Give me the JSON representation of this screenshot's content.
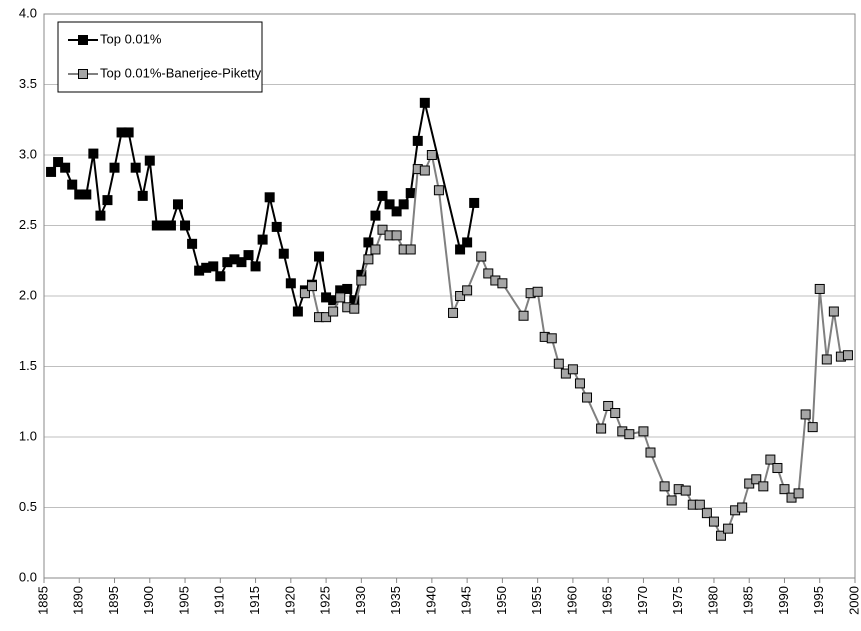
{
  "chart_data": {
    "type": "line",
    "xlim": [
      1885,
      2000
    ],
    "xticks": [
      1885,
      1890,
      1895,
      1900,
      1905,
      1910,
      1915,
      1920,
      1925,
      1930,
      1935,
      1940,
      1945,
      1950,
      1955,
      1960,
      1965,
      1970,
      1975,
      1980,
      1985,
      1990,
      1995,
      2000
    ],
    "ylim": [
      0,
      4
    ],
    "yticks": [
      {
        "value": 0,
        "label": "0.0"
      },
      0.5,
      {
        "value": 1,
        "label": "1.0"
      },
      1.5,
      {
        "value": 2,
        "label": "2.0"
      },
      2.5,
      {
        "value": 3,
        "label": "3.0"
      },
      3.5,
      {
        "value": 4,
        "label": "4.0"
      }
    ],
    "grid": true,
    "legend": "upper left",
    "series": [
      {
        "name": "Top 0.01%",
        "color": "#000000",
        "marker_fill": "#000000",
        "x": [
          1886,
          1887,
          1888,
          1889,
          1890,
          1891,
          1892,
          1893,
          1894,
          1895,
          1896,
          1897,
          1898,
          1899,
          1900,
          1901,
          1902,
          1903,
          1904,
          1905,
          1906,
          1907,
          1908,
          1909,
          1910,
          1911,
          1912,
          1913,
          1914,
          1915,
          1916,
          1917,
          1918,
          1919,
          1920,
          1921,
          1922,
          1923,
          1924,
          1925,
          1926,
          1927,
          1928,
          1929,
          1930,
          1931,
          1932,
          1933,
          1934,
          1935,
          1936,
          1937,
          1938,
          1939,
          1944,
          1945,
          1946
        ],
        "values": [
          2.88,
          2.95,
          2.91,
          2.79,
          2.72,
          2.72,
          3.01,
          2.57,
          2.68,
          2.91,
          3.16,
          3.16,
          2.91,
          2.71,
          2.96,
          2.5,
          2.5,
          2.5,
          2.65,
          2.5,
          2.37,
          2.18,
          2.2,
          2.21,
          2.14,
          2.24,
          2.26,
          2.24,
          2.29,
          2.21,
          2.4,
          2.7,
          2.49,
          2.3,
          2.09,
          1.89,
          2.04,
          2.08,
          2.28,
          1.99,
          1.97,
          2.04,
          2.05,
          1.97,
          2.15,
          2.38,
          2.57,
          2.71,
          2.65,
          2.6,
          2.65,
          2.73,
          3.1,
          3.37,
          2.33,
          2.38,
          2.66
        ]
      },
      {
        "name": "Top 0.01%-Banerjee-Piketty",
        "color": "#808080",
        "marker_fill": "#a6a6a6",
        "x": [
          1922,
          1923,
          1924,
          1925,
          1926,
          1927,
          1928,
          1929,
          1930,
          1931,
          1932,
          1933,
          1934,
          1935,
          1936,
          1937,
          1938,
          1939,
          1940,
          1941,
          1943,
          1944,
          1945,
          1947,
          1948,
          1949,
          1950,
          1953,
          1954,
          1955,
          1956,
          1957,
          1958,
          1959,
          1960,
          1961,
          1962,
          1964,
          1965,
          1966,
          1967,
          1968,
          1970,
          1971,
          1973,
          1974,
          1975,
          1976,
          1977,
          1978,
          1979,
          1980,
          1981,
          1982,
          1983,
          1984,
          1985,
          1986,
          1987,
          1988,
          1989,
          1990,
          1991,
          1992,
          1993,
          1994,
          1995,
          1996,
          1997,
          1998,
          1999
        ],
        "values": [
          2.02,
          2.07,
          1.85,
          1.85,
          1.89,
          1.99,
          1.92,
          1.91,
          2.11,
          2.26,
          2.33,
          2.47,
          2.43,
          2.43,
          2.33,
          2.33,
          2.9,
          2.89,
          3.0,
          2.75,
          1.88,
          2.0,
          2.04,
          2.28,
          2.16,
          2.11,
          2.09,
          1.86,
          2.02,
          2.03,
          1.71,
          1.7,
          1.52,
          1.45,
          1.48,
          1.38,
          1.28,
          1.06,
          1.22,
          1.17,
          1.04,
          1.02,
          1.04,
          0.89,
          0.65,
          0.55,
          0.63,
          0.62,
          0.52,
          0.52,
          0.46,
          0.4,
          0.3,
          0.35,
          0.48,
          0.5,
          0.67,
          0.7,
          0.65,
          0.84,
          0.78,
          0.63,
          0.57,
          0.6,
          1.16,
          1.07,
          2.05,
          1.55,
          1.89,
          1.57,
          1.58
        ]
      }
    ]
  }
}
